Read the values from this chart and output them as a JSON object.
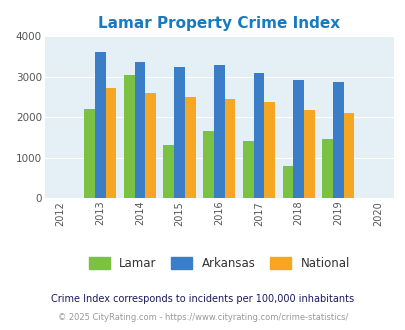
{
  "title": "Lamar Property Crime Index",
  "title_color": "#1a7abf",
  "years": [
    2013,
    2014,
    2015,
    2016,
    2017,
    2018,
    2019
  ],
  "xtick_range": [
    2012,
    2013,
    2014,
    2015,
    2016,
    2017,
    2018,
    2019,
    2020
  ],
  "lamar": [
    2200,
    3050,
    1320,
    1660,
    1400,
    780,
    1460
  ],
  "arkansas": [
    3600,
    3360,
    3250,
    3290,
    3090,
    2920,
    2870
  ],
  "national": [
    2720,
    2600,
    2500,
    2460,
    2380,
    2180,
    2100
  ],
  "lamar_color": "#7bc143",
  "arkansas_color": "#3a7ec8",
  "national_color": "#f5a623",
  "ylim": [
    0,
    4000
  ],
  "yticks": [
    0,
    1000,
    2000,
    3000,
    4000
  ],
  "plot_background": "#e4f0f5",
  "figure_background": "#ffffff",
  "legend_labels": [
    "Lamar",
    "Arkansas",
    "National"
  ],
  "footnote1": "Crime Index corresponds to incidents per 100,000 inhabitants",
  "footnote2": "© 2025 CityRating.com - https://www.cityrating.com/crime-statistics/",
  "footnote1_color": "#1a1a5e",
  "footnote2_color": "#999999",
  "bar_width": 0.27
}
